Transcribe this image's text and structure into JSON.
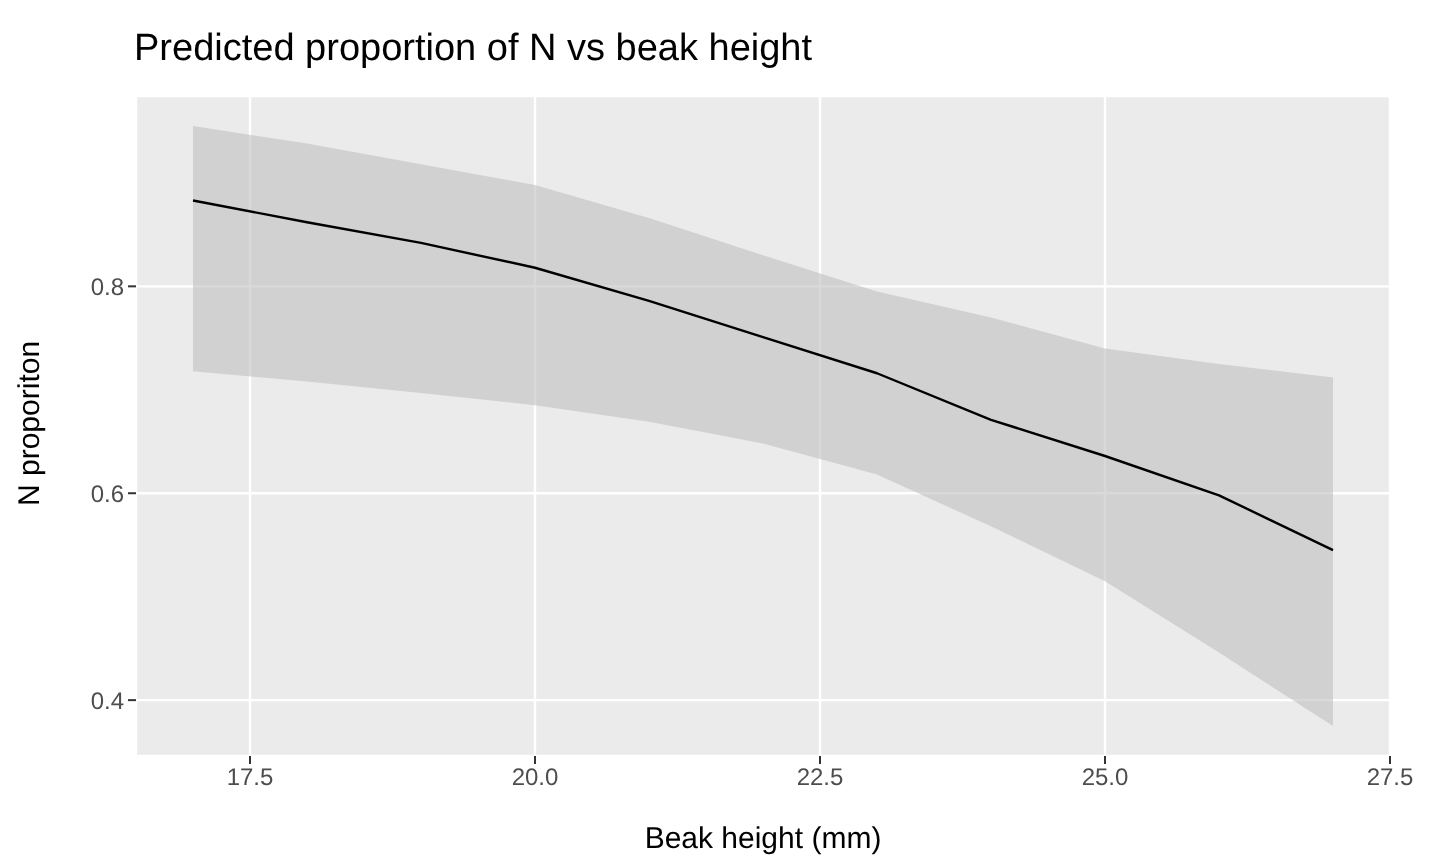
{
  "chart_data": {
    "type": "line",
    "title": "Predicted proportion of N vs beak height",
    "xlabel": "Beak height (mm)",
    "ylabel": "N proporiton",
    "x": [
      17,
      18,
      19,
      20,
      21,
      22,
      23,
      24,
      25,
      26,
      27
    ],
    "series": [
      {
        "color": "#000000",
        "values": [
          0.883,
          0.862,
          0.842,
          0.818,
          0.786,
          0.751,
          0.716,
          0.671,
          0.636,
          0.598,
          0.545
        ],
        "lower": [
          0.718,
          0.708,
          0.697,
          0.685,
          0.669,
          0.648,
          0.618,
          0.568,
          0.515,
          0.446,
          0.375
        ],
        "upper": [
          0.955,
          0.938,
          0.918,
          0.898,
          0.866,
          0.83,
          0.795,
          0.77,
          0.74,
          0.725,
          0.712
        ]
      }
    ],
    "xlim": [
      16.5,
      27.5
    ],
    "xticks": [
      17.5,
      {
        "value": 20,
        "label": "20.0"
      },
      22.5,
      {
        "value": 25,
        "label": "25.0"
      },
      27.5
    ],
    "ylim": [
      0.346,
      0.984
    ],
    "yticks": [
      0.4,
      0.6,
      0.8
    ],
    "grid": true,
    "marker": "none",
    "line_style": "solid"
  }
}
